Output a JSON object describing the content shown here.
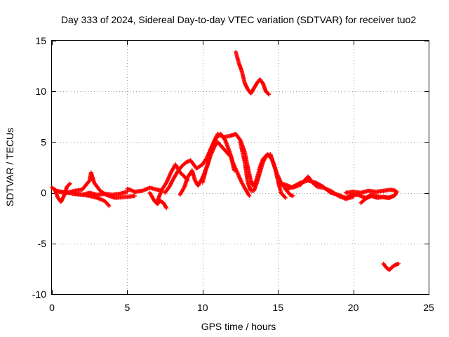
{
  "chart_data": {
    "type": "scatter",
    "title": "Day 333 of 2024, Sidereal Day-to-day VTEC variation (SDTVAR) for receiver tuo2",
    "xlabel": "GPS time / hours",
    "ylabel": "SDTVAR / TECUs",
    "xlim": [
      0,
      25
    ],
    "ylim": [
      -10,
      15
    ],
    "xticks": [
      0,
      5,
      10,
      15,
      20,
      25
    ],
    "yticks": [
      -10,
      -5,
      0,
      5,
      10,
      15
    ],
    "grid": true,
    "marker": "+",
    "color": "#ff0000",
    "series": [
      {
        "name": "arc-a",
        "points": [
          [
            0.0,
            0.5
          ],
          [
            0.3,
            0.2
          ],
          [
            0.6,
            0.1
          ],
          [
            1.0,
            0.0
          ],
          [
            1.5,
            -0.1
          ],
          [
            2.0,
            -0.2
          ],
          [
            2.5,
            -0.3
          ],
          [
            3.0,
            -0.5
          ],
          [
            3.5,
            -0.8
          ],
          [
            3.8,
            -1.3
          ]
        ]
      },
      {
        "name": "arc-b",
        "points": [
          [
            0.2,
            0.3
          ],
          [
            0.4,
            -0.5
          ],
          [
            0.6,
            -0.9
          ],
          [
            0.8,
            -0.3
          ],
          [
            1.0,
            0.6
          ],
          [
            1.2,
            0.9
          ]
        ]
      },
      {
        "name": "arc-c",
        "points": [
          [
            0.5,
            0.1
          ],
          [
            1.0,
            0.0
          ],
          [
            1.5,
            0.2
          ],
          [
            2.0,
            0.3
          ],
          [
            2.5,
            1.2
          ],
          [
            2.6,
            2.0
          ],
          [
            2.8,
            1.0
          ],
          [
            3.2,
            0.2
          ],
          [
            3.6,
            -0.2
          ],
          [
            4.2,
            -0.5
          ],
          [
            5.0,
            -0.4
          ],
          [
            5.5,
            -0.3
          ]
        ]
      },
      {
        "name": "arc-d",
        "points": [
          [
            1.5,
            -0.1
          ],
          [
            2.0,
            -0.2
          ],
          [
            2.5,
            0.0
          ],
          [
            3.0,
            -0.2
          ],
          [
            3.5,
            -0.1
          ],
          [
            4.0,
            -0.2
          ],
          [
            4.5,
            -0.1
          ],
          [
            5.0,
            0.1
          ]
        ]
      },
      {
        "name": "arc-e",
        "points": [
          [
            5.0,
            0.4
          ],
          [
            5.5,
            0.1
          ],
          [
            6.0,
            0.2
          ],
          [
            6.5,
            0.5
          ],
          [
            7.0,
            0.3
          ],
          [
            7.3,
            0.2
          ]
        ]
      },
      {
        "name": "arc-f",
        "points": [
          [
            6.5,
            0.0
          ],
          [
            6.8,
            -0.8
          ],
          [
            7.0,
            -1.1
          ],
          [
            7.2,
            -0.8
          ],
          [
            7.4,
            -1.0
          ],
          [
            7.6,
            -1.5
          ]
        ]
      },
      {
        "name": "arc-g",
        "points": [
          [
            7.0,
            -0.8
          ],
          [
            7.3,
            0.3
          ],
          [
            7.6,
            1.0
          ],
          [
            7.9,
            2.0
          ],
          [
            8.2,
            2.8
          ],
          [
            8.5,
            2.0
          ],
          [
            8.8,
            1.6
          ],
          [
            9.0,
            1.2
          ]
        ]
      },
      {
        "name": "arc-h",
        "points": [
          [
            7.5,
            0.0
          ],
          [
            7.8,
            0.6
          ],
          [
            8.0,
            1.2
          ],
          [
            8.3,
            2.0
          ],
          [
            8.6,
            2.6
          ],
          [
            8.9,
            3.0
          ],
          [
            9.2,
            3.2
          ],
          [
            9.6,
            2.4
          ],
          [
            10.0,
            2.8
          ],
          [
            10.3,
            3.5
          ],
          [
            10.5,
            4.2
          ],
          [
            10.8,
            5.2
          ],
          [
            11.0,
            5.8
          ],
          [
            11.4,
            5.5
          ],
          [
            11.8,
            5.6
          ],
          [
            12.2,
            5.8
          ],
          [
            12.5,
            5.2
          ],
          [
            12.8,
            4.0
          ],
          [
            13.0,
            2.5
          ]
        ]
      },
      {
        "name": "arc-i",
        "points": [
          [
            8.5,
            -0.2
          ],
          [
            8.8,
            0.6
          ],
          [
            9.0,
            1.5
          ],
          [
            9.3,
            2.2
          ],
          [
            9.5,
            1.2
          ],
          [
            9.7,
            0.7
          ],
          [
            10.0,
            1.5
          ],
          [
            10.3,
            2.6
          ],
          [
            10.5,
            3.6
          ],
          [
            10.8,
            4.6
          ],
          [
            11.0,
            5.0
          ],
          [
            11.3,
            4.5
          ],
          [
            11.6,
            4.0
          ],
          [
            11.9,
            3.5
          ],
          [
            12.1,
            2.2
          ]
        ]
      },
      {
        "name": "arc-j",
        "points": [
          [
            10.0,
            1.0
          ],
          [
            10.2,
            2.2
          ],
          [
            10.5,
            3.6
          ],
          [
            10.7,
            4.8
          ],
          [
            10.9,
            5.4
          ],
          [
            11.2,
            5.8
          ],
          [
            11.5,
            5.2
          ],
          [
            11.8,
            4.0
          ],
          [
            12.0,
            3.0
          ],
          [
            12.3,
            2.0
          ],
          [
            12.6,
            1.0
          ],
          [
            12.9,
            0.2
          ],
          [
            13.1,
            -0.3
          ]
        ]
      },
      {
        "name": "arc-k",
        "points": [
          [
            12.5,
            5.0
          ],
          [
            12.8,
            3.0
          ],
          [
            13.0,
            1.0
          ],
          [
            13.2,
            0.2
          ],
          [
            13.4,
            0.2
          ],
          [
            13.6,
            1.0
          ],
          [
            13.8,
            2.0
          ],
          [
            14.0,
            3.0
          ],
          [
            14.2,
            3.6
          ],
          [
            14.5,
            3.8
          ],
          [
            14.8,
            2.5
          ],
          [
            15.0,
            1.2
          ],
          [
            15.2,
            0.0
          ],
          [
            15.5,
            -0.5
          ]
        ]
      },
      {
        "name": "arc-l",
        "points": [
          [
            13.0,
            2.5
          ],
          [
            13.2,
            1.2
          ],
          [
            13.4,
            0.6
          ],
          [
            13.6,
            1.4
          ],
          [
            13.8,
            2.5
          ],
          [
            14.0,
            3.3
          ],
          [
            14.3,
            3.8
          ],
          [
            14.6,
            3.3
          ],
          [
            14.9,
            2.0
          ],
          [
            15.2,
            1.0
          ],
          [
            15.5,
            0.4
          ],
          [
            15.8,
            -0.2
          ],
          [
            16.0,
            -0.3
          ]
        ]
      },
      {
        "name": "arc-m",
        "points": [
          [
            15.0,
            1.0
          ],
          [
            15.5,
            0.8
          ],
          [
            16.0,
            0.5
          ],
          [
            16.5,
            0.8
          ],
          [
            17.0,
            1.6
          ],
          [
            17.3,
            1.0
          ],
          [
            17.6,
            0.6
          ],
          [
            18.0,
            0.5
          ],
          [
            18.5,
            0.2
          ],
          [
            19.0,
            -0.3
          ],
          [
            19.5,
            -0.6
          ],
          [
            20.0,
            -0.4
          ]
        ]
      },
      {
        "name": "arc-n",
        "points": [
          [
            15.5,
            0.3
          ],
          [
            16.0,
            0.6
          ],
          [
            16.5,
            1.0
          ],
          [
            17.0,
            1.2
          ],
          [
            17.5,
            1.0
          ],
          [
            18.0,
            0.6
          ],
          [
            18.5,
            0.0
          ],
          [
            19.0,
            -0.2
          ],
          [
            19.5,
            -0.5
          ],
          [
            20.0,
            -0.2
          ]
        ]
      },
      {
        "name": "arc-o",
        "points": [
          [
            19.5,
            0.0
          ],
          [
            20.0,
            0.1
          ],
          [
            20.5,
            0.0
          ],
          [
            21.0,
            0.2
          ],
          [
            21.5,
            0.1
          ],
          [
            22.0,
            0.2
          ],
          [
            22.5,
            0.3
          ],
          [
            22.8,
            0.2
          ]
        ]
      },
      {
        "name": "arc-p",
        "points": [
          [
            19.8,
            -0.3
          ],
          [
            20.3,
            -0.2
          ],
          [
            20.8,
            -0.5
          ],
          [
            21.2,
            -0.2
          ],
          [
            21.8,
            -0.4
          ],
          [
            22.3,
            -0.5
          ],
          [
            22.7,
            -0.3
          ],
          [
            22.9,
            0.1
          ]
        ]
      },
      {
        "name": "arc-q",
        "points": [
          [
            20.5,
            -1.0
          ],
          [
            20.8,
            -0.6
          ],
          [
            21.2,
            -0.3
          ],
          [
            21.6,
            -0.5
          ],
          [
            22.0,
            -0.4
          ],
          [
            22.4,
            -0.5
          ],
          [
            22.8,
            -0.2
          ]
        ]
      },
      {
        "name": "arc-r",
        "points": [
          [
            12.2,
            13.9
          ],
          [
            12.4,
            12.8
          ],
          [
            12.6,
            12.0
          ],
          [
            12.8,
            10.8
          ],
          [
            13.0,
            10.2
          ],
          [
            13.2,
            9.8
          ],
          [
            13.4,
            10.3
          ],
          [
            13.6,
            10.8
          ],
          [
            13.8,
            11.2
          ],
          [
            14.0,
            10.8
          ],
          [
            14.2,
            10.0
          ],
          [
            14.4,
            9.7
          ]
        ]
      },
      {
        "name": "arc-s",
        "points": [
          [
            22.0,
            -7.0
          ],
          [
            22.2,
            -7.4
          ],
          [
            22.4,
            -7.6
          ],
          [
            22.6,
            -7.3
          ],
          [
            22.8,
            -7.1
          ],
          [
            23.0,
            -7.0
          ]
        ]
      }
    ]
  }
}
